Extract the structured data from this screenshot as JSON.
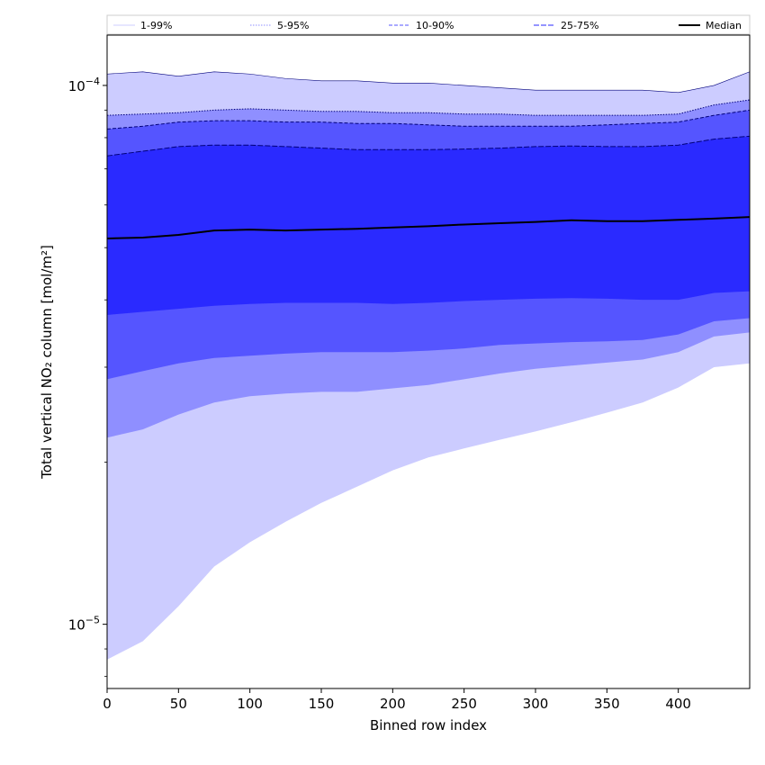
{
  "chart_data": {
    "type": "area",
    "title": "",
    "xlabel": "Binned row index",
    "ylabel": "Total vertical NO₂ column [mol/m²]",
    "yscale": "log",
    "xlim": [
      0,
      450
    ],
    "ylim": [
      7.6e-06,
      0.000124
    ],
    "grid": false,
    "legend_position": "top, above plot",
    "x_ticks": [
      {
        "value": 0,
        "label": "0"
      },
      {
        "value": 50,
        "label": "50"
      },
      {
        "value": 100,
        "label": "100"
      },
      {
        "value": 150,
        "label": "150"
      },
      {
        "value": 200,
        "label": "200"
      },
      {
        "value": 250,
        "label": "250"
      },
      {
        "value": 300,
        "label": "300"
      },
      {
        "value": 350,
        "label": "350"
      },
      {
        "value": 400,
        "label": "400"
      }
    ],
    "y_ticks": [
      {
        "value": 1e-05,
        "label_base": "10",
        "label_exp": "−5"
      },
      {
        "value": 0.0001,
        "label_base": "10",
        "label_exp": "−4"
      }
    ],
    "x": [
      0,
      25,
      50,
      75,
      100,
      125,
      150,
      175,
      200,
      225,
      250,
      275,
      300,
      325,
      350,
      375,
      400,
      425,
      450
    ],
    "series": [
      {
        "name": "1-99%",
        "color": "#ccccff",
        "lower": [
          8.6e-06,
          9.3e-06,
          1.08e-05,
          1.28e-05,
          1.42e-05,
          1.55e-05,
          1.68e-05,
          1.8e-05,
          1.93e-05,
          2.04e-05,
          2.12e-05,
          2.2e-05,
          2.28e-05,
          2.37e-05,
          2.47e-05,
          2.58e-05,
          2.75e-05,
          3e-05,
          3.05e-05
        ],
        "upper": [
          0.000105,
          0.000106,
          0.000104,
          0.000106,
          0.000105,
          0.000103,
          0.000102,
          0.000102,
          0.000101,
          0.000101,
          0.0001,
          9.9e-05,
          9.8e-05,
          9.8e-05,
          9.8e-05,
          9.8e-05,
          9.7e-05,
          0.0001,
          0.000106
        ]
      },
      {
        "name": "5-95%",
        "color": "#8f8fff",
        "lower": [
          2.22e-05,
          2.3e-05,
          2.45e-05,
          2.58e-05,
          2.65e-05,
          2.68e-05,
          2.7e-05,
          2.7e-05,
          2.74e-05,
          2.78e-05,
          2.85e-05,
          2.92e-05,
          2.98e-05,
          3.02e-05,
          3.06e-05,
          3.1e-05,
          3.2e-05,
          3.42e-05,
          3.48e-05
        ],
        "upper": [
          8.8e-05,
          8.85e-05,
          8.9e-05,
          9e-05,
          9.05e-05,
          9e-05,
          8.95e-05,
          8.95e-05,
          8.9e-05,
          8.9e-05,
          8.85e-05,
          8.85e-05,
          8.8e-05,
          8.8e-05,
          8.8e-05,
          8.8e-05,
          8.85e-05,
          9.2e-05,
          9.4e-05
        ]
      },
      {
        "name": "10-90%",
        "color": "#5555ff",
        "lower": [
          2.85e-05,
          2.95e-05,
          3.05e-05,
          3.12e-05,
          3.15e-05,
          3.18e-05,
          3.2e-05,
          3.2e-05,
          3.2e-05,
          3.22e-05,
          3.25e-05,
          3.3e-05,
          3.32e-05,
          3.34e-05,
          3.35e-05,
          3.37e-05,
          3.45e-05,
          3.65e-05,
          3.7e-05
        ],
        "upper": [
          8.3e-05,
          8.4e-05,
          8.55e-05,
          8.6e-05,
          8.6e-05,
          8.55e-05,
          8.55e-05,
          8.5e-05,
          8.5e-05,
          8.45e-05,
          8.4e-05,
          8.4e-05,
          8.4e-05,
          8.4e-05,
          8.45e-05,
          8.5e-05,
          8.55e-05,
          8.8e-05,
          9e-05
        ]
      },
      {
        "name": "25-75%",
        "color": "#2a2aff",
        "lower": [
          3.75e-05,
          3.8e-05,
          3.85e-05,
          3.9e-05,
          3.93e-05,
          3.95e-05,
          3.95e-05,
          3.95e-05,
          3.93e-05,
          3.95e-05,
          3.98e-05,
          4e-05,
          4.02e-05,
          4.03e-05,
          4.02e-05,
          4e-05,
          4e-05,
          4.12e-05,
          4.15e-05
        ],
        "upper": [
          7.4e-05,
          7.55e-05,
          7.7e-05,
          7.75e-05,
          7.75e-05,
          7.7e-05,
          7.65e-05,
          7.6e-05,
          7.6e-05,
          7.6e-05,
          7.62e-05,
          7.65e-05,
          7.7e-05,
          7.72e-05,
          7.7e-05,
          7.7e-05,
          7.75e-05,
          7.95e-05,
          8.05e-05
        ]
      }
    ],
    "median": {
      "name": "Median",
      "color": "#000000",
      "values": [
        5.2e-05,
        5.22e-05,
        5.28e-05,
        5.38e-05,
        5.4e-05,
        5.38e-05,
        5.4e-05,
        5.42e-05,
        5.45e-05,
        5.48e-05,
        5.52e-05,
        5.55e-05,
        5.58e-05,
        5.62e-05,
        5.6e-05,
        5.6e-05,
        5.63e-05,
        5.66e-05,
        5.7e-05
      ]
    }
  }
}
